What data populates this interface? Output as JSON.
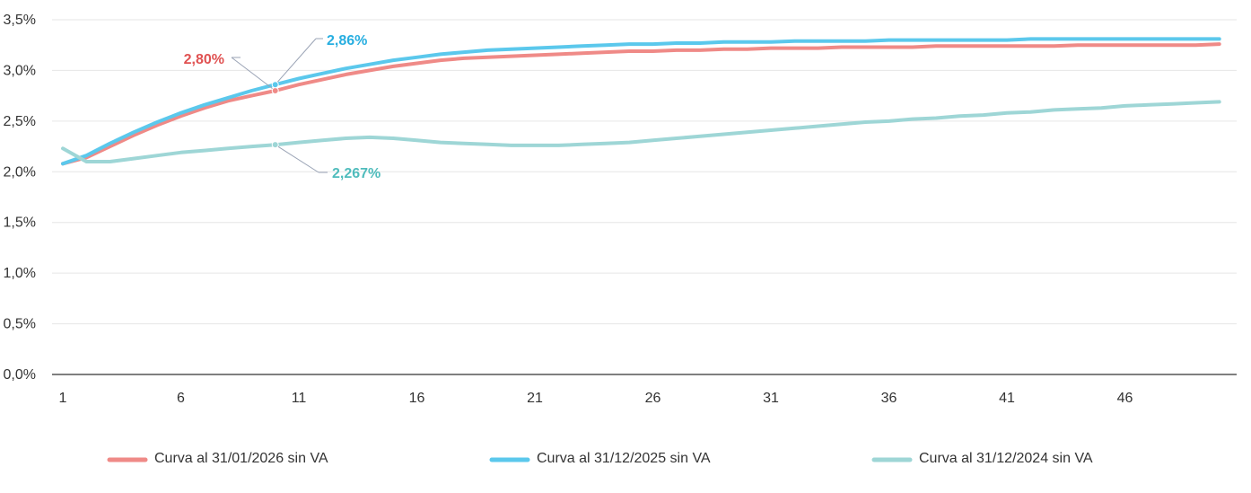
{
  "chart_data": {
    "type": "line",
    "title": "",
    "xlabel": "",
    "ylabel": "",
    "x_range": [
      1,
      50
    ],
    "x_ticks": [
      1,
      6,
      11,
      16,
      21,
      26,
      31,
      36,
      41,
      46
    ],
    "y_range": [
      0,
      3.5
    ],
    "y_ticks": [
      0,
      0.5,
      1.0,
      1.5,
      2.0,
      2.5,
      3.0,
      3.5
    ],
    "y_tick_labels": [
      "0,0%",
      "0,5%",
      "1,0%",
      "1,5%",
      "2,0%",
      "2,5%",
      "3,0%",
      "3,5%"
    ],
    "grid": "horizontal",
    "legend_position": "bottom",
    "series": [
      {
        "name": "Curva al 31/01/2026 sin VA",
        "color": "#ef8a87",
        "x": [
          1,
          2,
          3,
          4,
          5,
          6,
          7,
          8,
          9,
          10,
          11,
          12,
          13,
          14,
          15,
          16,
          17,
          18,
          19,
          20,
          21,
          22,
          23,
          24,
          25,
          26,
          27,
          28,
          29,
          30,
          31,
          32,
          33,
          34,
          35,
          36,
          37,
          38,
          39,
          40,
          41,
          42,
          43,
          44,
          45,
          46,
          47,
          48,
          49,
          50
        ],
        "y": [
          2.08,
          2.14,
          2.25,
          2.36,
          2.46,
          2.55,
          2.63,
          2.7,
          2.75,
          2.8,
          2.86,
          2.91,
          2.96,
          3.0,
          3.04,
          3.07,
          3.1,
          3.12,
          3.13,
          3.14,
          3.15,
          3.16,
          3.17,
          3.18,
          3.19,
          3.19,
          3.2,
          3.2,
          3.21,
          3.21,
          3.22,
          3.22,
          3.22,
          3.23,
          3.23,
          3.23,
          3.23,
          3.24,
          3.24,
          3.24,
          3.24,
          3.24,
          3.24,
          3.25,
          3.25,
          3.25,
          3.25,
          3.25,
          3.25,
          3.26
        ]
      },
      {
        "name": "Curva al 31/12/2025 sin VA",
        "color": "#5bc8ec",
        "x": [
          1,
          2,
          3,
          4,
          5,
          6,
          7,
          8,
          9,
          10,
          11,
          12,
          13,
          14,
          15,
          16,
          17,
          18,
          19,
          20,
          21,
          22,
          23,
          24,
          25,
          26,
          27,
          28,
          29,
          30,
          31,
          32,
          33,
          34,
          35,
          36,
          37,
          38,
          39,
          40,
          41,
          42,
          43,
          44,
          45,
          46,
          47,
          48,
          49,
          50
        ],
        "y": [
          2.08,
          2.16,
          2.28,
          2.39,
          2.49,
          2.58,
          2.66,
          2.73,
          2.8,
          2.86,
          2.92,
          2.97,
          3.02,
          3.06,
          3.1,
          3.13,
          3.16,
          3.18,
          3.2,
          3.21,
          3.22,
          3.23,
          3.24,
          3.25,
          3.26,
          3.26,
          3.27,
          3.27,
          3.28,
          3.28,
          3.28,
          3.29,
          3.29,
          3.29,
          3.29,
          3.3,
          3.3,
          3.3,
          3.3,
          3.3,
          3.3,
          3.31,
          3.31,
          3.31,
          3.31,
          3.31,
          3.31,
          3.31,
          3.31,
          3.31
        ]
      },
      {
        "name": "Curva al 31/12/2024 sin VA",
        "color": "#9ed6d6",
        "x": [
          1,
          2,
          3,
          4,
          5,
          6,
          7,
          8,
          9,
          10,
          11,
          12,
          13,
          14,
          15,
          16,
          17,
          18,
          19,
          20,
          21,
          22,
          23,
          24,
          25,
          26,
          27,
          28,
          29,
          30,
          31,
          32,
          33,
          34,
          35,
          36,
          37,
          38,
          39,
          40,
          41,
          42,
          43,
          44,
          45,
          46,
          47,
          48,
          49,
          50
        ],
        "y": [
          2.23,
          2.1,
          2.1,
          2.13,
          2.16,
          2.19,
          2.21,
          2.23,
          2.25,
          2.267,
          2.29,
          2.31,
          2.33,
          2.34,
          2.33,
          2.31,
          2.29,
          2.28,
          2.27,
          2.26,
          2.26,
          2.26,
          2.27,
          2.28,
          2.29,
          2.31,
          2.33,
          2.35,
          2.37,
          2.39,
          2.41,
          2.43,
          2.45,
          2.47,
          2.49,
          2.5,
          2.52,
          2.53,
          2.55,
          2.56,
          2.58,
          2.59,
          2.61,
          2.62,
          2.63,
          2.65,
          2.66,
          2.67,
          2.68,
          2.69
        ]
      }
    ],
    "annotations": [
      {
        "series": 0,
        "x": 10,
        "y": 2.8,
        "text": "2,80%",
        "color": "#e05252"
      },
      {
        "series": 1,
        "x": 10,
        "y": 2.86,
        "text": "2,86%",
        "color": "#27aee0"
      },
      {
        "series": 2,
        "x": 10,
        "y": 2.267,
        "text": "2,267%",
        "color": "#4fbcbc"
      }
    ]
  }
}
